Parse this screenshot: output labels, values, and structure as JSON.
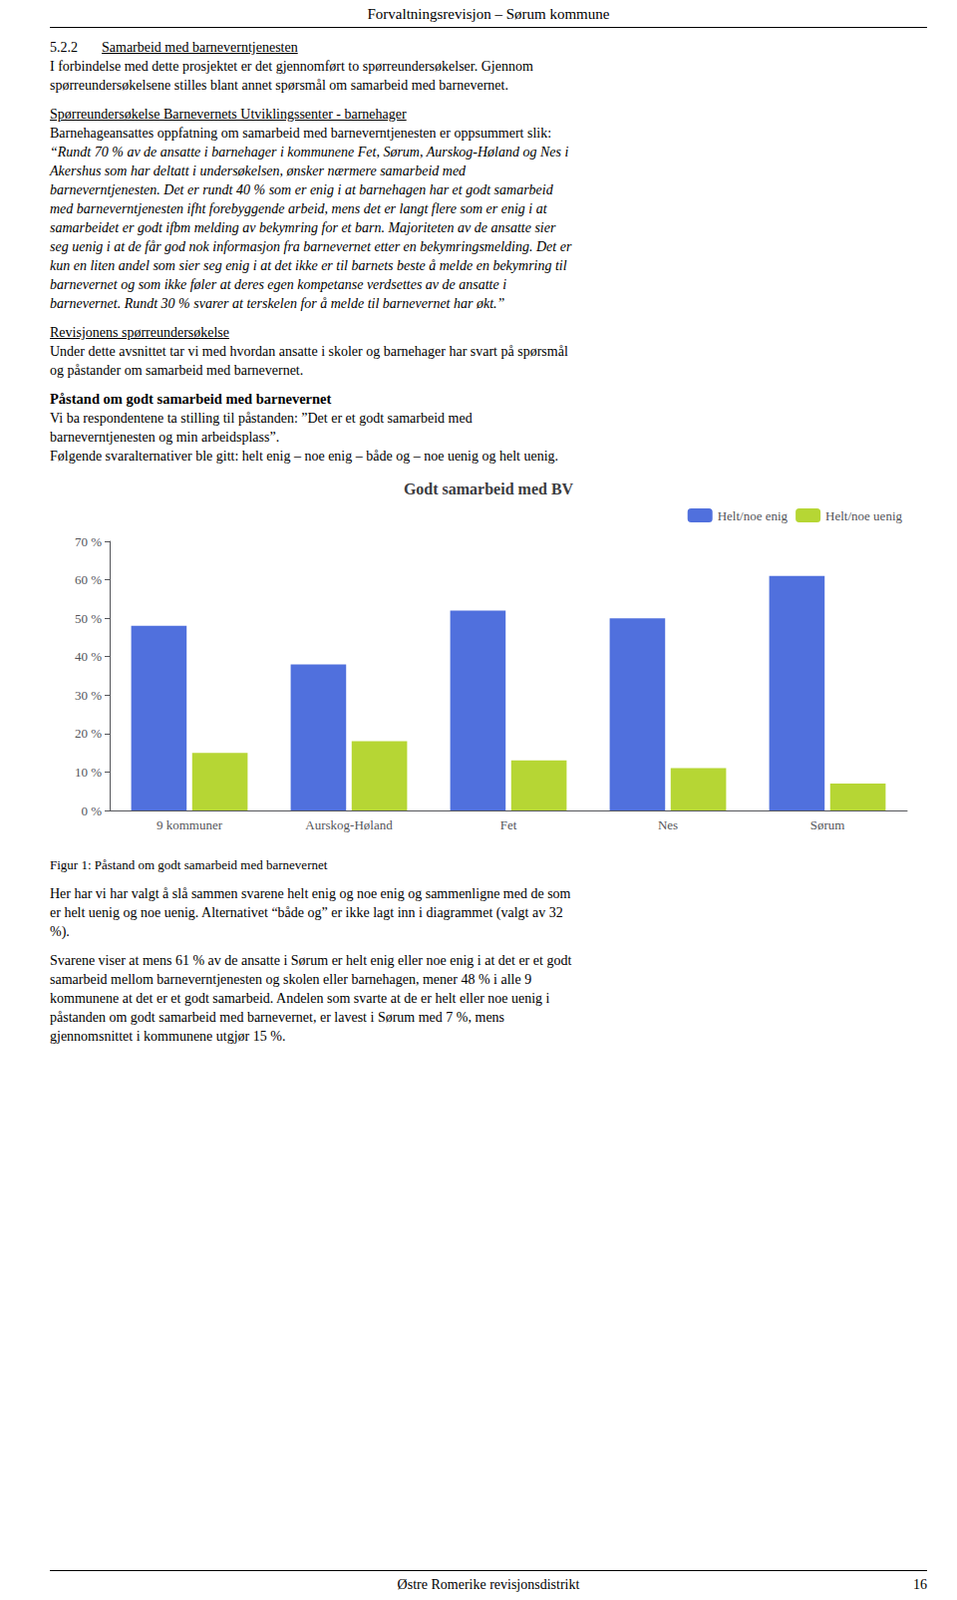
{
  "page": {
    "page_title": "Forvaltningsrevisjon – Sørum kommune",
    "section_number": "5.2.2",
    "section_underlined": "Samarbeid med barneverntjenesten",
    "body_text_1": [
      "I forbindelse med dette prosjektet er det gjennomført to spørreundersøkelser. Gjennom",
      "spørreundersøkelsene stilles blant annet spørsmål om samarbeid med barnevernet."
    ],
    "subsection_heading": "Spørreundersøkelse Barnevernets Utviklingssenter - barnehager",
    "body_normal_1": "Barnehageansattes oppfatning om samarbeid med barneverntjenesten er oppsummert slik:",
    "body_italic": [
      "“Rundt 70 % av de ansatte i barnehager i kommunene Fet, Sørum, Aurskog-Høland og Nes i",
      "Akershus som har deltatt i undersøkelsen, ønsker nærmere samarbeid med",
      "barneverntjenesten. Det er rundt 40 % som er enig i at barnehagen har et godt samarbeid",
      "med barneverntjenesten ifht forebyggende arbeid, mens det er langt flere som er enig i at",
      "samarbeidet er godt ifbm melding av bekymring for et barn. Majoriteten av de ansatte sier",
      "seg uenig i at de får god nok informasjon fra barnevernet etter en bekymringsmelding. Det er",
      "kun en liten andel som sier seg enig i at det ikke er til barnets beste å melde en bekymring til",
      "barnevernet og som ikke føler at deres egen kompetanse verdsettes av de ansatte i",
      "barnevernet. Rundt 30 % svarer at terskelen for å melde til barnevernet har økt.”"
    ],
    "section_heading_2": "Revisjonens spørreundersøkelse",
    "body_text_3": [
      "Under dette avsnittet tar vi med hvordan ansatte i skoler og barnehager har svart på spørsmål",
      "og påstander om samarbeid med barnevernet."
    ],
    "bold_heading": "Påstand om godt samarbeid med barnevernet",
    "body_text_4": [
      "Vi ba respondentene ta stilling til påstanden: ”Det er et godt samarbeid med",
      "barneverntjenesten og min arbeidsplass”.",
      "Følgende svaralternativer ble gitt: helt enig – noe enig – både og – noe uenig og helt uenig."
    ],
    "figure_caption": "Figur 1: Påstand om godt samarbeid med barnevernet",
    "body_text_5": [
      "Her har vi har valgt å slå sammen svarene helt enig og noe enig og sammenligne med de som",
      "er helt uenig og noe uenig. Alternativet “både og” er ikke lagt inn i diagrammet (valgt av 32",
      "%)."
    ],
    "body_text_6": [
      "Svarene viser at mens 61 % av de ansatte i Sørum er helt enig eller noe enig i at det er et godt",
      "samarbeid mellom barneverntjenesten og skolen eller barnehagen, mener 48 % i alle 9",
      "kommunene at det er et godt samarbeid. Andelen som svarte at de er helt eller noe uenig i",
      "påstanden om godt samarbeid med barnevernet, er lavest i Sørum med 7 %, mens",
      "gjennomsnittet i kommunene utgjør 15 %."
    ],
    "footer_text": "Østre Romerike revisjonsdistrikt",
    "page_number": "16"
  },
  "chart_data": {
    "type": "bar",
    "title": "Godt samarbeid med BV",
    "categories": [
      "9 kommuner",
      "Aurskog-Høland",
      "Fet",
      "Nes",
      "Sørum"
    ],
    "series": [
      {
        "name": "Helt/noe enig",
        "values": [
          0.48,
          0.38,
          0.52,
          0.5,
          0.61
        ]
      },
      {
        "name": "Helt/noe uenig",
        "values": [
          0.15,
          0.18,
          0.13,
          0.11,
          0.07
        ]
      }
    ],
    "ylim": [
      0,
      0.7
    ],
    "yticks": [
      {
        "value": 0.0,
        "label": "0 %"
      },
      {
        "value": 0.1,
        "label": "10 %"
      },
      {
        "value": 0.2,
        "label": "20 %"
      },
      {
        "value": 0.3,
        "label": "30 %"
      },
      {
        "value": 0.4,
        "label": "40 %"
      },
      {
        "value": 0.5,
        "label": "50 %"
      },
      {
        "value": 0.6,
        "label": "60 %"
      },
      {
        "value": 0.7,
        "label": "70 %"
      }
    ],
    "grid": false,
    "legend": "upper right"
  }
}
